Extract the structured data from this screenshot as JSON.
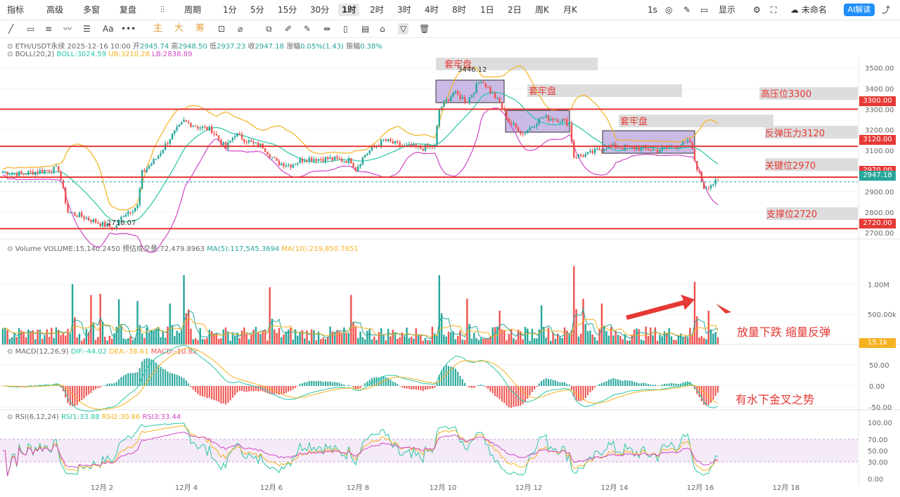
{
  "toolbar": {
    "items": [
      "指标",
      "高级",
      "多窗",
      "复盘",
      "周期",
      "1分",
      "5分",
      "15分",
      "30分",
      "1时",
      "2时",
      "3时",
      "4时",
      "8时",
      "1日",
      "2日",
      "周K",
      "月K"
    ],
    "active": "1时",
    "right": {
      "speed": "1s",
      "display": "显示",
      "name": "未命名",
      "ai": "AI解读"
    }
  },
  "drawbar": {
    "buttons": [
      "Aa",
      "•••",
      "主",
      "大",
      "筹"
    ]
  },
  "info": {
    "symbol": "ETH/USDT永续",
    "datetime": "2025-12-16 10:00",
    "open_label": "开",
    "open": "2945.74",
    "high_label": "高",
    "high": "2948.50",
    "low_label": "低",
    "low": "2937.23",
    "close_label": "收",
    "close": "2947.18",
    "change_label": "涨幅",
    "change": "0.05%(1.43)",
    "amp_label": "振幅",
    "amp": "0.38%",
    "boll_name": "BOLL(20,2)",
    "boll": "BOLL:3024.59",
    "ub": "UB:3210.28",
    "lb": "LB:2838.89",
    "vol_name": "Volume",
    "vol": "VOLUME:15,140.2450",
    "vol_est": "预估成交量:72,479.8963",
    "ma5": "MA(5):117,545.3694",
    "ma10": "MA(10):219,850.7651",
    "macd_name": "MACD(12,26,9)",
    "dif": "DIF:-44.02",
    "dea": "DEA:-38.61",
    "macd": "MACD:-10.82",
    "rsi_name": "RSI(6,12,24)",
    "rsi1": "RSI1:33.88",
    "rsi2": "RSI2:30.86",
    "rsi3": "RSI3:33.44"
  },
  "annotations": {
    "box1": "套牢盘",
    "box2": "套牢盘",
    "box3": "套牢盘",
    "high_price": "3446.12",
    "low_price": "2718.07",
    "r1": "高压位3300",
    "r2": "反弹压力3120",
    "r3": "关键位2970",
    "r4": "支撑位2720",
    "volume_note": "放量下跌 缩量反弹",
    "macd_note": "有水下金叉之势"
  },
  "price_tags": {
    "t3300": "3300.00",
    "t3120": "3120.00",
    "t2970": "2970.00",
    "t2947": "2947.18",
    "t2720": "2720.00",
    "vol_tag": "15.1k"
  },
  "colors": {
    "up": "#26a69a",
    "down": "#ef5350",
    "boll_mid": "#26c6a6",
    "boll_ub": "#f5b120",
    "boll_lb": "#d047c6",
    "level": "#e53935"
  },
  "chart_data": {
    "type": "candlestick",
    "x_ticks": [
      "12月 2",
      "12月 4",
      "12月 6",
      "12月 8",
      "12月 10",
      "12月 12",
      "12月 14",
      "12月 16",
      "12月 18"
    ],
    "price_axis": {
      "ticks": [
        3500,
        3400,
        3300,
        3200,
        3100,
        3000,
        2900,
        2800,
        2700
      ],
      "ylim": [
        2680,
        3540
      ]
    },
    "price_path": [
      [
        0,
        2995
      ],
      [
        8,
        2985
      ],
      [
        16,
        3000
      ],
      [
        24,
        3010
      ],
      [
        28,
        2800
      ],
      [
        34,
        2780
      ],
      [
        42,
        2745
      ],
      [
        48,
        2720
      ],
      [
        52,
        2790
      ],
      [
        58,
        2830
      ],
      [
        60,
        2990
      ],
      [
        66,
        3060
      ],
      [
        72,
        3160
      ],
      [
        78,
        3240
      ],
      [
        84,
        3215
      ],
      [
        90,
        3200
      ],
      [
        96,
        3110
      ],
      [
        100,
        3180
      ],
      [
        108,
        3130
      ],
      [
        112,
        3120
      ],
      [
        118,
        3040
      ],
      [
        124,
        3030
      ],
      [
        130,
        3060
      ],
      [
        140,
        3060
      ],
      [
        150,
        3050
      ],
      [
        152,
        3010
      ],
      [
        156,
        3080
      ],
      [
        164,
        3150
      ],
      [
        172,
        3120
      ],
      [
        180,
        3110
      ],
      [
        186,
        3120
      ],
      [
        188,
        3300
      ],
      [
        194,
        3380
      ],
      [
        200,
        3340
      ],
      [
        206,
        3446
      ],
      [
        214,
        3330
      ],
      [
        218,
        3240
      ],
      [
        224,
        3180
      ],
      [
        232,
        3260
      ],
      [
        240,
        3250
      ],
      [
        244,
        3230
      ],
      [
        246,
        3070
      ],
      [
        252,
        3080
      ],
      [
        260,
        3120
      ],
      [
        274,
        3110
      ],
      [
        282,
        3100
      ],
      [
        296,
        3140
      ],
      [
        298,
        3050
      ],
      [
        302,
        2920
      ],
      [
        306,
        2940
      ],
      [
        308,
        2947
      ]
    ],
    "bars": 309,
    "levels": [
      3300,
      3120,
      2970,
      2720
    ],
    "series": [
      {
        "name": "BOLL",
        "values": [
          3024.59
        ]
      },
      {
        "name": "UB",
        "values": [
          3210.28
        ]
      },
      {
        "name": "LB",
        "values": [
          2838.89
        ]
      }
    ],
    "volume": {
      "ticks": [
        "1.00M",
        "500.00k"
      ],
      "spikes": [
        [
          30,
          1000000
        ],
        [
          38,
          820000
        ],
        [
          42,
          840000
        ],
        [
          50,
          750000
        ],
        [
          58,
          720000
        ],
        [
          72,
          680000
        ],
        [
          78,
          1150000
        ],
        [
          80,
          580000
        ],
        [
          115,
          950000
        ],
        [
          150,
          820000
        ],
        [
          188,
          1150000
        ],
        [
          200,
          760000
        ],
        [
          214,
          560000
        ],
        [
          232,
          650000
        ],
        [
          246,
          1300000
        ],
        [
          250,
          760000
        ],
        [
          258,
          680000
        ],
        [
          298,
          1040000
        ],
        [
          304,
          560000
        ]
      ]
    },
    "macd": {
      "ticks": [
        "50.00",
        "0.00",
        "-50.00"
      ],
      "ylim": [
        -70,
        70
      ]
    },
    "rsi": {
      "ticks": [
        "100.00",
        "70.00",
        "50.00",
        "30.00",
        "0.00"
      ],
      "ylim": [
        0,
        100
      ],
      "band": [
        30,
        70
      ]
    }
  }
}
